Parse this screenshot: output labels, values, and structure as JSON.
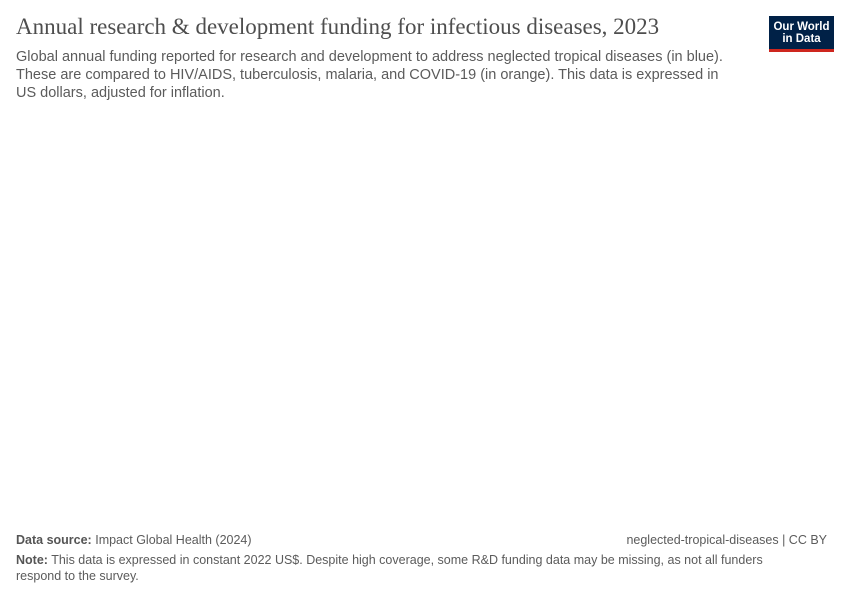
{
  "chart_data": {
    "type": "bar",
    "title": "Annual research & development funding for infectious diseases, 2023",
    "subtitle": "Global annual funding reported for research and development to address neglected tropical diseases (in blue). These are compared to HIV/AIDS, tuberculosis, malaria, and COVID-19 (in orange). This data is expressed in US dollars, adjusted for inflation.",
    "logo": [
      "Our World",
      "in Data"
    ],
    "source_label": "Data source:",
    "source": "Impact Global Health (2024)",
    "url": "neglected-tropical-diseases | CC BY",
    "note_label": "Note:",
    "note": "This data is expressed in constant 2022 US$. Despite high coverage, some R&D funding data may be missing, as not all funders respond to the survey."
  }
}
